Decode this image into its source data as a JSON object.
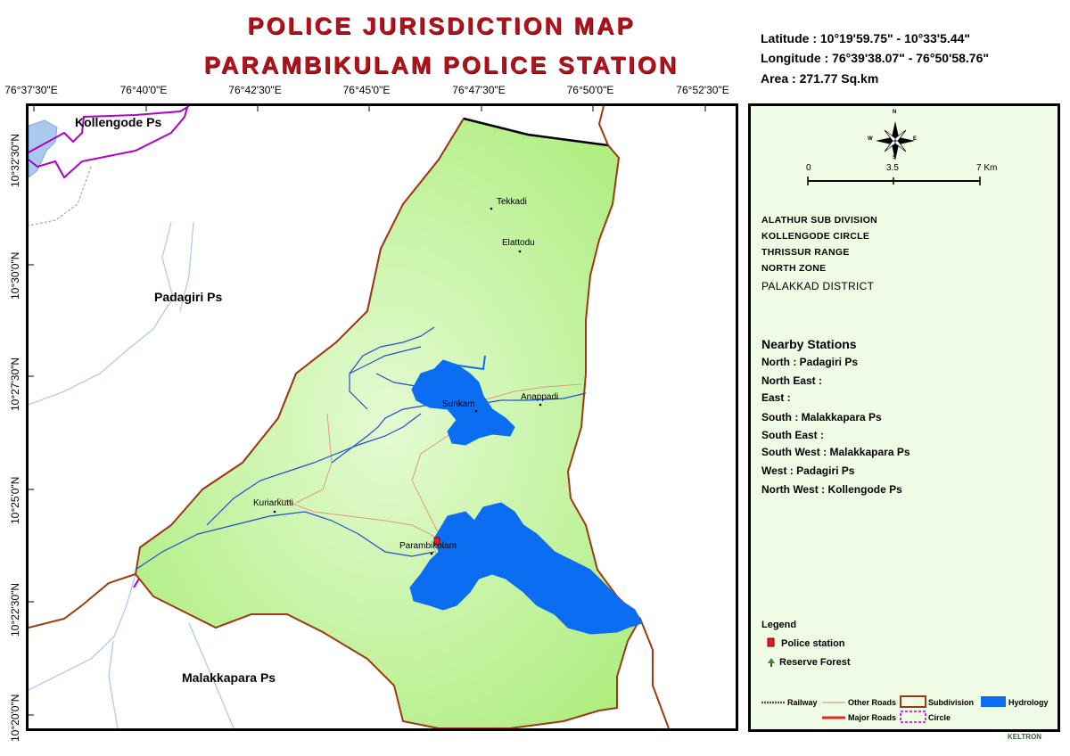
{
  "titles": {
    "line1": "POLICE JURISDICTION MAP",
    "line2": "PARAMBIKULAM POLICE STATION"
  },
  "info": {
    "latitude": "Latitude : 10°19'59.75\"  -  10°33'5.44\"",
    "longitude": "Longitude : 76°39'38.07\"  -  76°50'58.76\"",
    "area": "Area : 271.77 Sq.km"
  },
  "axes": {
    "longitudes": [
      "76°37'30\"E",
      "76°40'0\"E",
      "76°42'30\"E",
      "76°45'0\"E",
      "76°47'30\"E",
      "76°50'0\"E",
      "76°52'30\"E"
    ],
    "latitudes": [
      "10°32'30\"N",
      "10°30'0\"N",
      "10°27'30\"N",
      "10°25'0\"N",
      "10°22'30\"N",
      "10°20'0\"N"
    ]
  },
  "map": {
    "neighbor_stations": {
      "kollengode": "Kollengode Ps",
      "padagiri": "Padagiri Ps",
      "malakkapara": "Malakkapara Ps"
    },
    "places": {
      "tekkadi": "Tekkadi",
      "elattodu": "Elattodu",
      "anappadi": "Anappadi",
      "sunkam": "Sunkam",
      "kuriarkutti": "Kuriarkutti",
      "parambikulam": "Parambikolam"
    },
    "colors": {
      "jurisdiction_fill": "#b7f08a",
      "hydrology": "#0a6df2",
      "subdivision": "#9b3a12",
      "circle": "#b000c8",
      "other_roads": "#e39b7d",
      "rivers": "#1f4fd6"
    }
  },
  "panel": {
    "compass": {
      "n": "N",
      "s": "S",
      "e": "E",
      "w": "W"
    },
    "scale": {
      "zero": "0",
      "mid": "3.5",
      "end": "7 Km"
    },
    "hierarchy": [
      "ALATHUR SUB DIVISION",
      "KOLLENGODE CIRCLE",
      "THRISSUR RANGE",
      "NORTH ZONE",
      "PALAKKAD  DISTRICT"
    ],
    "nearby_title": "Nearby Stations",
    "nearby": [
      "North : Padagiri Ps",
      "North East :",
      "East :",
      "South : Malakkapara Ps",
      "South East :",
      "South West : Malakkapara Ps",
      "West : Padagiri Ps",
      "North West : Kollengode Ps"
    ],
    "legend_title": "Legend",
    "legend_symbols": {
      "police_station": "Police station",
      "reserve_forest": "Reserve Forest"
    },
    "legend_lines": {
      "railway": "Railway",
      "other_roads": "Other Roads",
      "subdivision": "Subdivision",
      "hydrology": "Hydrology",
      "major_roads": "Major Roads",
      "circle": "Circle"
    }
  },
  "logo": "KELTRON"
}
